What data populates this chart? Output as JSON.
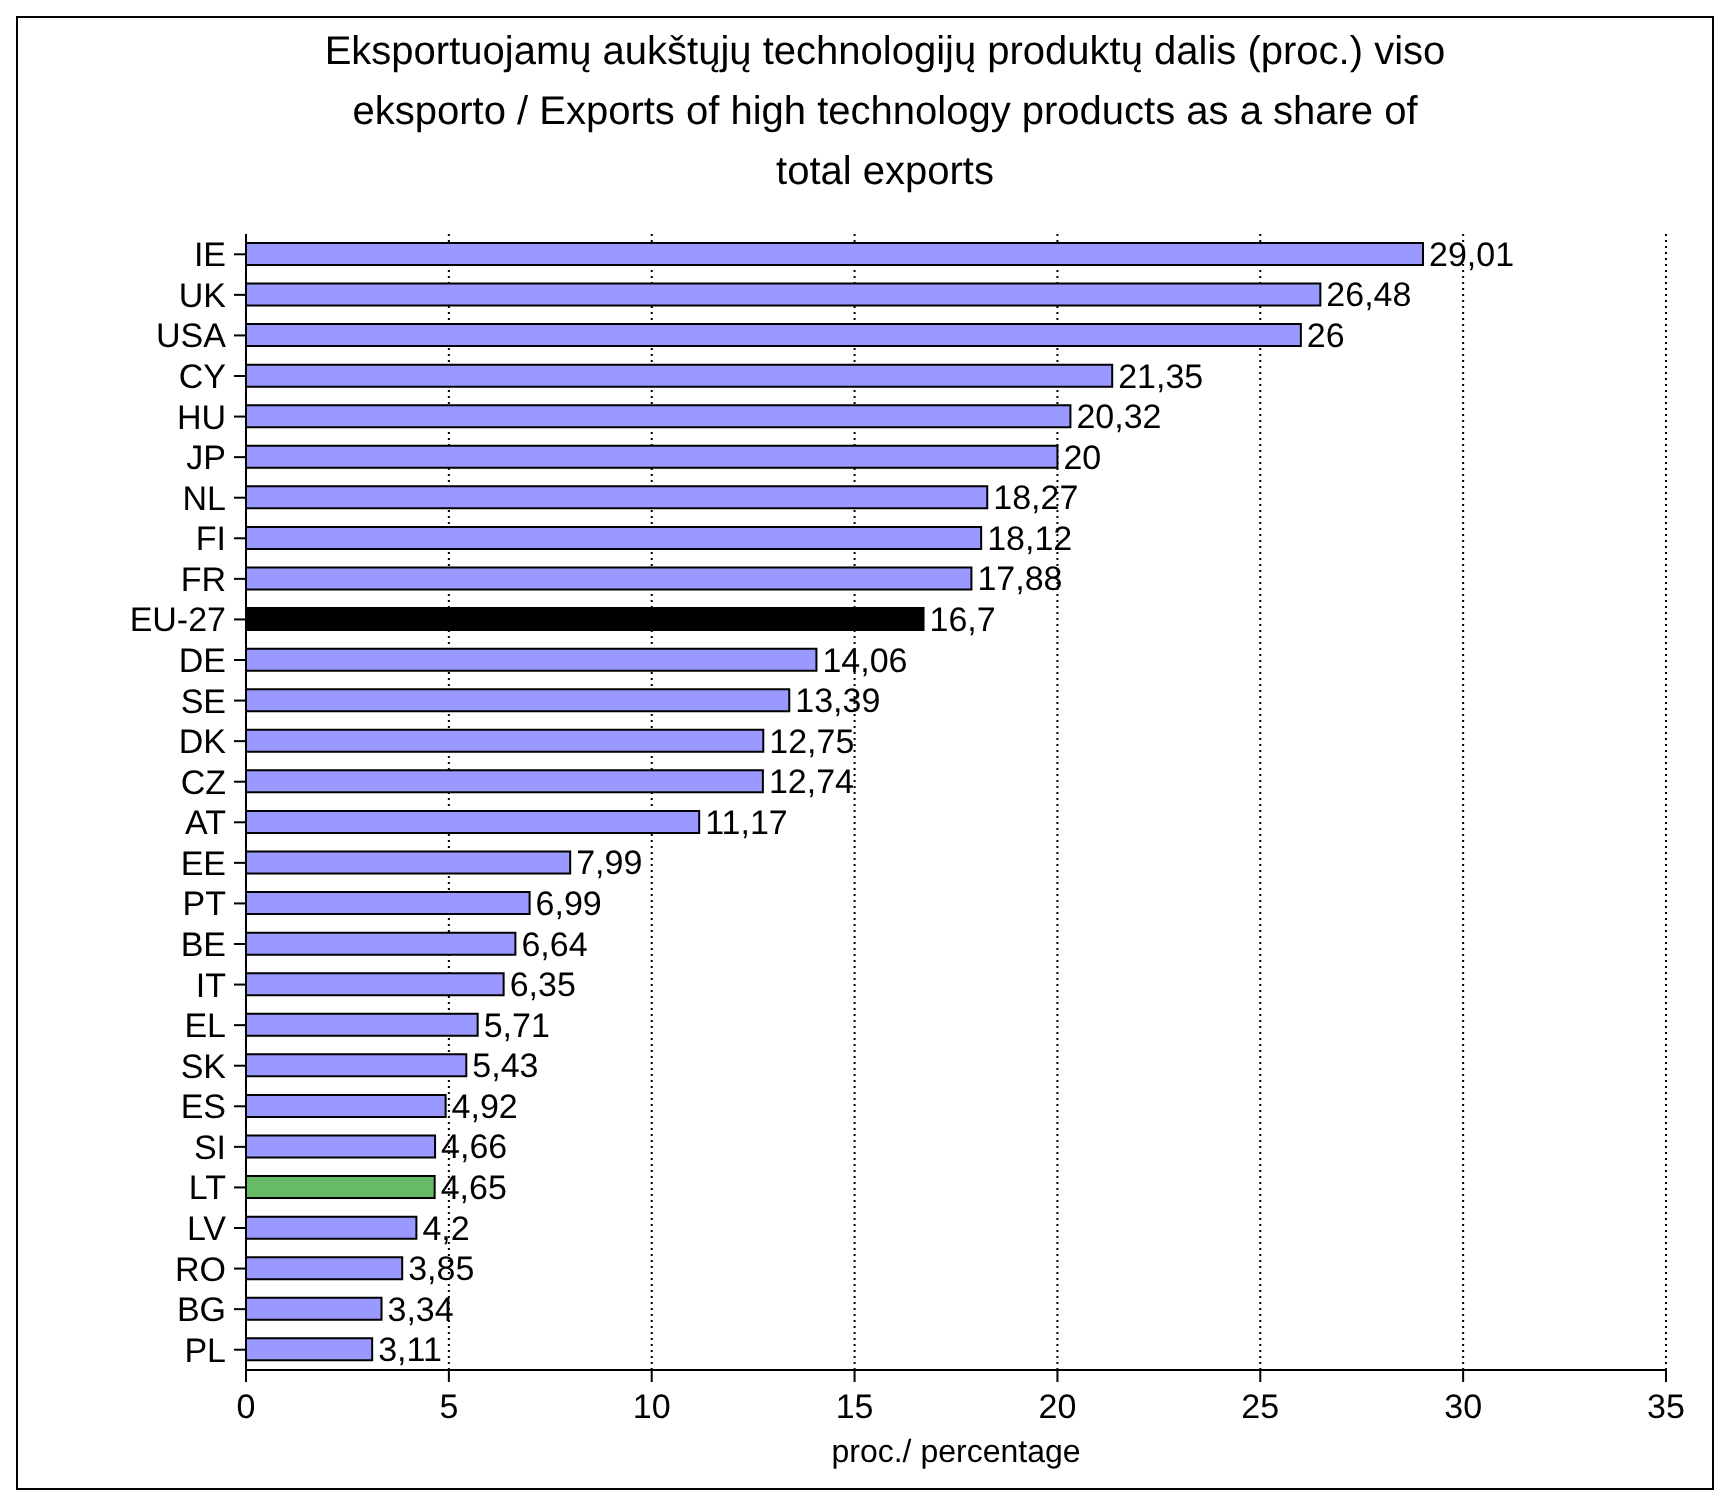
{
  "chart_data": {
    "type": "bar",
    "orientation": "horizontal",
    "title": "Eksportuojamų aukštųjų technologijų produktų dalis (proc.) viso eksporto / Exports of high technology products as a share of total exports",
    "xlabel": "proc./ percentage",
    "categories": [
      "IE",
      "UK",
      "USA",
      "CY",
      "HU",
      "JP",
      "NL",
      "FI",
      "FR",
      "EU-27",
      "DE",
      "SE",
      "DK",
      "CZ",
      "AT",
      "EE",
      "PT",
      "BE",
      "IT",
      "EL",
      "SK",
      "ES",
      "SI",
      "LT",
      "LV",
      "RO",
      "BG",
      "PL"
    ],
    "values": [
      29.01,
      26.48,
      26,
      21.35,
      20.32,
      20,
      18.27,
      18.12,
      17.88,
      16.7,
      14.06,
      13.39,
      12.75,
      12.74,
      11.17,
      7.99,
      6.99,
      6.64,
      6.35,
      5.71,
      5.43,
      4.92,
      4.66,
      4.65,
      4.2,
      3.85,
      3.34,
      3.11
    ],
    "value_labels": [
      "29,01",
      "26,48",
      "26",
      "21,35",
      "20,32",
      "20",
      "18,27",
      "18,12",
      "17,88",
      "16,7",
      "14,06",
      "13,39",
      "12,75",
      "12,74",
      "11,17",
      "7,99",
      "6,99",
      "6,64",
      "6,35",
      "5,71",
      "5,43",
      "4,92",
      "4,66",
      "4,65",
      "4,2",
      "3,85",
      "3,34",
      "3,11"
    ],
    "colors": [
      "#9999ff",
      "#9999ff",
      "#9999ff",
      "#9999ff",
      "#9999ff",
      "#9999ff",
      "#9999ff",
      "#9999ff",
      "#9999ff",
      "#000000",
      "#9999ff",
      "#9999ff",
      "#9999ff",
      "#9999ff",
      "#9999ff",
      "#9999ff",
      "#9999ff",
      "#9999ff",
      "#9999ff",
      "#9999ff",
      "#9999ff",
      "#9999ff",
      "#9999ff",
      "#66bb66",
      "#9999ff",
      "#9999ff",
      "#9999ff",
      "#9999ff"
    ],
    "xlim": [
      0,
      35
    ],
    "xticks": [
      0,
      5,
      10,
      15,
      20,
      25,
      30,
      35
    ],
    "grid": "x",
    "legend": false
  }
}
